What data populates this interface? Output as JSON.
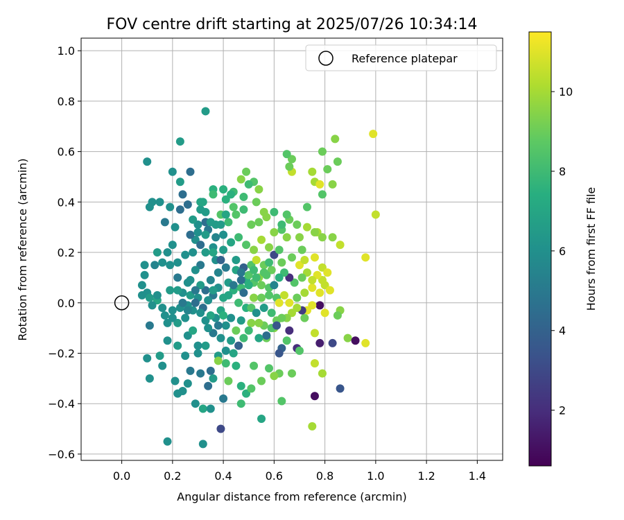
{
  "chart_data": {
    "type": "scatter",
    "title": "FOV centre drift starting at 2025/07/26 10:34:14",
    "xlabel": "Angular distance from reference (arcmin)",
    "ylabel": "Rotation from reference (arcmin)",
    "colorbar_label": "Hours from first FF file",
    "xlim": [
      -0.16,
      1.5
    ],
    "ylim": [
      -0.625,
      1.05
    ],
    "xticks": [
      0.0,
      0.2,
      0.4,
      0.6,
      0.8,
      1.0,
      1.2,
      1.4
    ],
    "xtick_labels": [
      "0.0",
      "0.2",
      "0.4",
      "0.6",
      "0.8",
      "1.0",
      "1.2",
      "1.4"
    ],
    "yticks": [
      -0.6,
      -0.4,
      -0.2,
      0.0,
      0.2,
      0.4,
      0.6,
      0.8,
      1.0
    ],
    "ytick_labels": [
      "−0.6",
      "−0.4",
      "−0.2",
      "0.0",
      "0.2",
      "0.4",
      "0.6",
      "0.8",
      "1.0"
    ],
    "colorbar_range": [
      0.6,
      11.5
    ],
    "colorbar_ticks": [
      2,
      4,
      6,
      8,
      10
    ],
    "colorbar_tick_labels": [
      "2",
      "4",
      "6",
      "8",
      "10"
    ],
    "colormap": "viridis",
    "grid": true,
    "legend": {
      "placement": "upper right",
      "entries": [
        "Reference platepar"
      ]
    },
    "reference_point": {
      "x": 0.0,
      "y": 0.0
    },
    "points": [
      [
        0.33,
        0.76,
        6.5
      ],
      [
        0.23,
        0.64,
        6.5
      ],
      [
        0.1,
        0.56,
        6.0
      ],
      [
        0.2,
        0.52,
        6.0
      ],
      [
        0.27,
        0.52,
        4.5
      ],
      [
        0.23,
        0.48,
        6.5
      ],
      [
        0.36,
        0.45,
        7.5
      ],
      [
        0.24,
        0.43,
        4.5
      ],
      [
        0.12,
        0.4,
        6.0
      ],
      [
        0.15,
        0.4,
        6.0
      ],
      [
        0.19,
        0.38,
        6.0
      ],
      [
        0.23,
        0.37,
        4.5
      ],
      [
        0.26,
        0.39,
        4.5
      ],
      [
        0.32,
        0.4,
        7.0
      ],
      [
        0.31,
        0.37,
        6.5
      ],
      [
        0.11,
        0.38,
        6.0
      ],
      [
        0.17,
        0.32,
        5.0
      ],
      [
        0.21,
        0.3,
        6.0
      ],
      [
        0.3,
        0.31,
        6.0
      ],
      [
        0.33,
        0.32,
        4.5
      ],
      [
        0.37,
        0.31,
        6.5
      ],
      [
        0.29,
        0.25,
        6.0
      ],
      [
        0.27,
        0.27,
        4.5
      ],
      [
        0.34,
        0.29,
        5.0
      ],
      [
        0.13,
        0.15,
        5.5
      ],
      [
        0.09,
        0.15,
        6.0
      ],
      [
        0.09,
        0.11,
        6.0
      ],
      [
        0.14,
        0.2,
        6.5
      ],
      [
        0.18,
        0.2,
        6.0
      ],
      [
        0.2,
        0.23,
        6.0
      ],
      [
        0.22,
        0.16,
        6.0
      ],
      [
        0.25,
        0.19,
        6.0
      ],
      [
        0.28,
        0.2,
        6.0
      ],
      [
        0.31,
        0.23,
        4.5
      ],
      [
        0.33,
        0.2,
        6.5
      ],
      [
        0.36,
        0.22,
        6.0
      ],
      [
        0.4,
        0.21,
        6.5
      ],
      [
        0.37,
        0.17,
        6.0
      ],
      [
        0.31,
        0.15,
        5.0
      ],
      [
        0.29,
        0.13,
        6.0
      ],
      [
        0.19,
        0.15,
        6.0
      ],
      [
        0.16,
        0.16,
        6.0
      ],
      [
        0.22,
        0.1,
        5.0
      ],
      [
        0.26,
        0.08,
        6.0
      ],
      [
        0.24,
        0.04,
        6.0
      ],
      [
        0.27,
        0.03,
        6.5
      ],
      [
        0.3,
        0.02,
        6.0
      ],
      [
        0.33,
        0.05,
        4.5
      ],
      [
        0.38,
        0.06,
        6.0
      ],
      [
        0.4,
        0.02,
        7.0
      ],
      [
        0.36,
        0.03,
        5.0
      ],
      [
        0.32,
        -0.02,
        4.5
      ],
      [
        0.28,
        -0.03,
        6.0
      ],
      [
        0.26,
        -0.01,
        6.0
      ],
      [
        0.23,
        -0.02,
        6.0
      ],
      [
        0.2,
        -0.03,
        6.0
      ],
      [
        0.17,
        -0.05,
        6.0
      ],
      [
        0.14,
        0.01,
        7.0
      ],
      [
        0.1,
        0.04,
        6.0
      ],
      [
        0.08,
        0.07,
        6.0
      ],
      [
        0.08,
        0.03,
        6.0
      ],
      [
        0.11,
        0.02,
        6.5
      ],
      [
        0.12,
        -0.01,
        6.0
      ],
      [
        0.11,
        -0.09,
        5.0
      ],
      [
        0.1,
        -0.22,
        6.0
      ],
      [
        0.11,
        -0.3,
        6.0
      ],
      [
        0.15,
        -0.21,
        6.5
      ],
      [
        0.16,
        -0.25,
        6.0
      ],
      [
        0.18,
        -0.15,
        6.0
      ],
      [
        0.22,
        -0.17,
        6.5
      ],
      [
        0.26,
        -0.13,
        6.0
      ],
      [
        0.25,
        -0.21,
        6.0
      ],
      [
        0.27,
        -0.27,
        5.0
      ],
      [
        0.3,
        -0.2,
        6.0
      ],
      [
        0.33,
        -0.17,
        6.5
      ],
      [
        0.31,
        -0.28,
        5.0
      ],
      [
        0.35,
        -0.27,
        4.5
      ],
      [
        0.38,
        -0.21,
        6.5
      ],
      [
        0.41,
        -0.19,
        6.0
      ],
      [
        0.43,
        -0.15,
        6.5
      ],
      [
        0.45,
        -0.25,
        7.5
      ],
      [
        0.39,
        -0.14,
        6.0
      ],
      [
        0.36,
        -0.12,
        5.0
      ],
      [
        0.34,
        -0.1,
        6.0
      ],
      [
        0.37,
        -0.06,
        6.0
      ],
      [
        0.39,
        -0.03,
        7.0
      ],
      [
        0.41,
        -0.09,
        6.0
      ],
      [
        0.43,
        -0.06,
        6.0
      ],
      [
        0.21,
        -0.31,
        6.0
      ],
      [
        0.22,
        -0.36,
        6.0
      ],
      [
        0.24,
        -0.35,
        6.0
      ],
      [
        0.26,
        -0.32,
        6.0
      ],
      [
        0.29,
        -0.4,
        6.0
      ],
      [
        0.32,
        -0.42,
        7.0
      ],
      [
        0.35,
        -0.42,
        6.0
      ],
      [
        0.4,
        -0.38,
        5.0
      ],
      [
        0.39,
        -0.5,
        3.0
      ],
      [
        0.18,
        -0.55,
        6.0
      ],
      [
        0.32,
        -0.56,
        6.0
      ],
      [
        0.47,
        -0.33,
        7.5
      ],
      [
        0.49,
        -0.36,
        7.5
      ],
      [
        0.47,
        -0.4,
        8.0
      ],
      [
        0.51,
        -0.34,
        8.5
      ],
      [
        0.52,
        -0.25,
        8.5
      ],
      [
        0.55,
        -0.31,
        9.0
      ],
      [
        0.55,
        -0.46,
        7.0
      ],
      [
        0.62,
        -0.28,
        9.0
      ],
      [
        0.63,
        -0.39,
        8.5
      ],
      [
        0.6,
        -0.29,
        9.5
      ],
      [
        0.58,
        -0.26,
        8.5
      ],
      [
        0.57,
        -0.14,
        9.0
      ],
      [
        0.6,
        -0.1,
        9.5
      ],
      [
        0.63,
        -0.18,
        4.0
      ],
      [
        0.62,
        -0.2,
        3.5
      ],
      [
        0.65,
        -0.15,
        8.5
      ],
      [
        0.66,
        -0.11,
        2.0
      ],
      [
        0.69,
        -0.18,
        2.0
      ],
      [
        0.7,
        -0.19,
        8.5
      ],
      [
        0.67,
        -0.28,
        9.0
      ],
      [
        0.72,
        -0.06,
        9.0
      ],
      [
        0.76,
        -0.12,
        10.5
      ],
      [
        0.78,
        -0.16,
        1.5
      ],
      [
        0.76,
        -0.24,
        10.5
      ],
      [
        0.79,
        -0.28,
        10.0
      ],
      [
        0.76,
        -0.37,
        1.0
      ],
      [
        0.75,
        -0.49,
        10.0
      ],
      [
        0.83,
        -0.16,
        3.0
      ],
      [
        0.86,
        -0.03,
        9.5
      ],
      [
        0.85,
        -0.05,
        9.0
      ],
      [
        0.89,
        -0.14,
        9.5
      ],
      [
        0.92,
        -0.15,
        1.0
      ],
      [
        0.96,
        -0.16,
        11.0
      ],
      [
        0.86,
        -0.34,
        3.5
      ],
      [
        0.8,
        -0.04,
        11.0
      ],
      [
        0.78,
        -0.01,
        1.0
      ],
      [
        0.75,
        -0.01,
        11.0
      ],
      [
        0.73,
        -0.03,
        11.0
      ],
      [
        0.71,
        -0.03,
        2.5
      ],
      [
        0.69,
        -0.02,
        10.0
      ],
      [
        0.67,
        -0.04,
        10.0
      ],
      [
        0.65,
        -0.06,
        9.5
      ],
      [
        0.63,
        -0.06,
        9.0
      ],
      [
        0.61,
        -0.07,
        9.0
      ],
      [
        0.59,
        -0.1,
        8.5
      ],
      [
        0.56,
        -0.09,
        9.0
      ],
      [
        0.54,
        -0.08,
        9.5
      ],
      [
        0.51,
        -0.08,
        9.5
      ],
      [
        0.49,
        -0.02,
        7.5
      ],
      [
        0.47,
        -0.07,
        6.5
      ],
      [
        0.45,
        -0.11,
        9.0
      ],
      [
        0.52,
        0.02,
        9.5
      ],
      [
        0.55,
        0.02,
        9.0
      ],
      [
        0.58,
        0.03,
        8.5
      ],
      [
        0.61,
        0.02,
        8.5
      ],
      [
        0.62,
        0.0,
        11.0
      ],
      [
        0.64,
        0.03,
        10.5
      ],
      [
        0.66,
        0.0,
        11.0
      ],
      [
        0.69,
        0.02,
        9.0
      ],
      [
        0.72,
        0.04,
        10.0
      ],
      [
        0.75,
        0.06,
        11.0
      ],
      [
        0.78,
        0.04,
        11.0
      ],
      [
        0.8,
        0.07,
        10.5
      ],
      [
        0.82,
        0.05,
        11.0
      ],
      [
        0.79,
        0.09,
        10.5
      ],
      [
        0.77,
        0.11,
        11.0
      ],
      [
        0.75,
        0.09,
        10.5
      ],
      [
        0.73,
        0.12,
        10.0
      ],
      [
        0.71,
        0.1,
        9.0
      ],
      [
        0.68,
        0.08,
        8.5
      ],
      [
        0.66,
        0.1,
        2.0
      ],
      [
        0.64,
        0.12,
        8.0
      ],
      [
        0.62,
        0.1,
        7.5
      ],
      [
        0.59,
        0.13,
        9.0
      ],
      [
        0.57,
        0.11,
        8.5
      ],
      [
        0.54,
        0.1,
        9.5
      ],
      [
        0.52,
        0.08,
        8.5
      ],
      [
        0.49,
        0.09,
        7.5
      ],
      [
        0.47,
        0.06,
        8.0
      ],
      [
        0.44,
        0.05,
        7.5
      ],
      [
        0.42,
        0.08,
        6.5
      ],
      [
        0.45,
        0.13,
        7.0
      ],
      [
        0.48,
        0.14,
        4.0
      ],
      [
        0.51,
        0.15,
        8.5
      ],
      [
        0.53,
        0.17,
        10.5
      ],
      [
        0.56,
        0.15,
        9.0
      ],
      [
        0.6,
        0.19,
        3.0
      ],
      [
        0.63,
        0.16,
        9.0
      ],
      [
        0.67,
        0.18,
        9.0
      ],
      [
        0.7,
        0.15,
        11.0
      ],
      [
        0.72,
        0.17,
        10.5
      ],
      [
        0.76,
        0.18,
        11.0
      ],
      [
        0.79,
        0.14,
        10.5
      ],
      [
        0.81,
        0.12,
        11.0
      ],
      [
        0.77,
        0.28,
        10.0
      ],
      [
        0.73,
        0.3,
        10.0
      ],
      [
        0.7,
        0.26,
        9.5
      ],
      [
        0.71,
        0.21,
        9.0
      ],
      [
        0.65,
        0.26,
        9.5
      ],
      [
        0.62,
        0.21,
        8.5
      ],
      [
        0.58,
        0.22,
        9.5
      ],
      [
        0.55,
        0.25,
        10.0
      ],
      [
        0.52,
        0.21,
        9.5
      ],
      [
        0.49,
        0.23,
        8.5
      ],
      [
        0.46,
        0.26,
        8.0
      ],
      [
        0.43,
        0.24,
        7.0
      ],
      [
        0.4,
        0.27,
        6.0
      ],
      [
        0.42,
        0.32,
        8.0
      ],
      [
        0.45,
        0.35,
        8.5
      ],
      [
        0.48,
        0.37,
        8.0
      ],
      [
        0.51,
        0.31,
        9.0
      ],
      [
        0.54,
        0.32,
        9.0
      ],
      [
        0.57,
        0.34,
        9.5
      ],
      [
        0.6,
        0.36,
        8.0
      ],
      [
        0.63,
        0.29,
        8.5
      ],
      [
        0.66,
        0.33,
        9.0
      ],
      [
        0.69,
        0.31,
        9.0
      ],
      [
        0.73,
        0.38,
        8.5
      ],
      [
        0.76,
        0.28,
        9.5
      ],
      [
        0.79,
        0.26,
        9.5
      ],
      [
        0.83,
        0.26,
        9.5
      ],
      [
        0.86,
        0.23,
        10.5
      ],
      [
        0.96,
        0.18,
        11.0
      ],
      [
        1.0,
        0.35,
        10.5
      ],
      [
        0.79,
        0.43,
        8.5
      ],
      [
        0.76,
        0.48,
        10.0
      ],
      [
        0.78,
        0.47,
        11.0
      ],
      [
        0.83,
        0.47,
        9.5
      ],
      [
        0.81,
        0.53,
        9.0
      ],
      [
        0.79,
        0.6,
        9.0
      ],
      [
        0.85,
        0.56,
        9.0
      ],
      [
        0.84,
        0.65,
        9.5
      ],
      [
        0.75,
        0.52,
        10.0
      ],
      [
        0.67,
        0.52,
        10.5
      ],
      [
        0.66,
        0.54,
        9.0
      ],
      [
        0.67,
        0.57,
        9.0
      ],
      [
        0.65,
        0.59,
        8.5
      ],
      [
        0.99,
        0.67,
        11.0
      ],
      [
        0.49,
        0.52,
        9.0
      ],
      [
        0.52,
        0.48,
        8.5
      ],
      [
        0.54,
        0.45,
        9.5
      ],
      [
        0.47,
        0.49,
        9.5
      ],
      [
        0.5,
        0.47,
        8.0
      ],
      [
        0.44,
        0.44,
        8.0
      ],
      [
        0.43,
        0.43,
        7.5
      ],
      [
        0.41,
        0.41,
        7.5
      ],
      [
        0.39,
        0.35,
        8.5
      ],
      [
        0.35,
        0.32,
        6.5
      ],
      [
        0.37,
        0.26,
        5.5
      ],
      [
        0.36,
        0.2,
        7.0
      ],
      [
        0.39,
        0.17,
        4.0
      ],
      [
        0.41,
        0.14,
        5.0
      ],
      [
        0.38,
        0.12,
        5.5
      ],
      [
        0.35,
        0.09,
        5.5
      ],
      [
        0.31,
        0.07,
        6.5
      ],
      [
        0.29,
        0.05,
        5.0
      ],
      [
        0.27,
        0.09,
        6.0
      ],
      [
        0.45,
        0.17,
        6.5
      ],
      [
        0.47,
        0.12,
        5.0
      ],
      [
        0.5,
        0.11,
        8.5
      ],
      [
        0.55,
        0.07,
        9.0
      ],
      [
        0.58,
        0.06,
        8.5
      ],
      [
        0.6,
        0.07,
        5.5
      ],
      [
        0.48,
        0.04,
        4.5
      ],
      [
        0.46,
        0.0,
        8.0
      ],
      [
        0.51,
        -0.02,
        8.5
      ],
      [
        0.53,
        -0.04,
        6.0
      ],
      [
        0.56,
        -0.02,
        6.5
      ],
      [
        0.59,
        -0.04,
        8.0
      ],
      [
        0.61,
        -0.09,
        3.5
      ],
      [
        0.57,
        -0.13,
        4.5
      ],
      [
        0.54,
        -0.14,
        7.0
      ],
      [
        0.5,
        -0.11,
        8.0
      ],
      [
        0.48,
        -0.14,
        8.0
      ],
      [
        0.46,
        -0.17,
        4.0
      ],
      [
        0.44,
        -0.2,
        7.0
      ],
      [
        0.41,
        -0.24,
        8.0
      ],
      [
        0.42,
        -0.31,
        9.0
      ],
      [
        0.38,
        -0.23,
        9.5
      ],
      [
        0.36,
        -0.3,
        6.5
      ],
      [
        0.34,
        -0.33,
        4.5
      ],
      [
        0.3,
        -0.17,
        6.0
      ],
      [
        0.28,
        -0.11,
        7.0
      ],
      [
        0.25,
        -0.06,
        6.0
      ],
      [
        0.22,
        -0.08,
        6.5
      ],
      [
        0.2,
        -0.06,
        6.0
      ],
      [
        0.18,
        -0.08,
        6.0
      ],
      [
        0.16,
        -0.02,
        6.0
      ],
      [
        0.14,
        0.03,
        6.0
      ],
      [
        0.19,
        0.05,
        6.5
      ],
      [
        0.22,
        0.05,
        6.5
      ],
      [
        0.24,
        0.0,
        5.0
      ],
      [
        0.26,
        -0.03,
        5.5
      ],
      [
        0.29,
        0.0,
        4.5
      ],
      [
        0.31,
        -0.04,
        6.0
      ],
      [
        0.33,
        -0.07,
        6.0
      ],
      [
        0.35,
        -0.05,
        7.0
      ],
      [
        0.38,
        -0.09,
        5.0
      ],
      [
        0.4,
        -0.05,
        7.5
      ],
      [
        0.34,
        0.01,
        6.0
      ],
      [
        0.36,
        0.05,
        6.5
      ],
      [
        0.42,
        0.03,
        7.0
      ],
      [
        0.44,
        0.07,
        5.0
      ],
      [
        0.47,
        0.09,
        4.5
      ],
      [
        0.5,
        0.07,
        7.5
      ],
      [
        0.53,
        0.1,
        8.0
      ],
      [
        0.56,
        0.12,
        8.5
      ],
      [
        0.58,
        0.16,
        8.0
      ],
      [
        0.52,
        0.13,
        8.0
      ],
      [
        0.6,
        0.28,
        9.5
      ],
      [
        0.63,
        0.31,
        8.0
      ],
      [
        0.65,
        0.35,
        8.5
      ],
      [
        0.56,
        0.36,
        9.5
      ],
      [
        0.53,
        0.4,
        9.0
      ],
      [
        0.48,
        0.42,
        8.0
      ],
      [
        0.44,
        0.38,
        8.5
      ],
      [
        0.41,
        0.35,
        7.0
      ],
      [
        0.39,
        0.31,
        6.5
      ],
      [
        0.33,
        0.27,
        6.5
      ],
      [
        0.3,
        0.28,
        6.0
      ],
      [
        0.28,
        0.33,
        6.5
      ],
      [
        0.33,
        0.36,
        6.5
      ],
      [
        0.31,
        0.4,
        7.0
      ],
      [
        0.36,
        0.43,
        8.0
      ],
      [
        0.4,
        0.45,
        7.5
      ]
    ]
  }
}
